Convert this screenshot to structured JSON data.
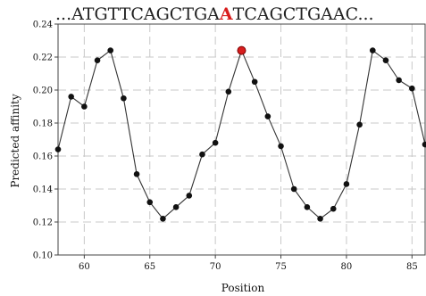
{
  "chart_data": {
    "type": "line",
    "sequence_prefix": "...",
    "sequence_left": "ATGTTCAGCTGA",
    "sequence_highlight": "A",
    "sequence_right": "TCAGCTGAAC",
    "sequence_suffix": "...",
    "xlabel": "Position",
    "ylabel": "Predicted affinity",
    "xlim": [
      58,
      86
    ],
    "ylim": [
      0.1,
      0.24
    ],
    "xticks": [
      60,
      65,
      70,
      75,
      80,
      85
    ],
    "yticks": [
      0.1,
      0.12,
      0.14,
      0.16,
      0.18,
      0.2,
      0.22,
      0.24
    ],
    "grid": true,
    "highlight_x": 72,
    "colors": {
      "line": "#333333",
      "point": "#111111",
      "highlight": "#d81e1e",
      "grid": "#c8c8c8"
    },
    "series": [
      {
        "x": [
          58,
          59,
          60,
          61,
          62,
          63,
          64,
          65,
          66,
          67,
          68,
          69,
          70,
          71,
          72,
          73,
          74,
          75,
          76,
          77,
          78,
          79,
          80,
          81,
          82,
          83,
          84,
          85,
          86
        ],
        "values": [
          0.164,
          0.196,
          0.19,
          0.218,
          0.224,
          0.195,
          0.149,
          0.132,
          0.122,
          0.129,
          0.136,
          0.161,
          0.168,
          0.199,
          0.224,
          0.205,
          0.184,
          0.166,
          0.14,
          0.129,
          0.122,
          0.128,
          0.143,
          0.179,
          0.224,
          0.218,
          0.206,
          0.201,
          0.167
        ]
      }
    ]
  }
}
